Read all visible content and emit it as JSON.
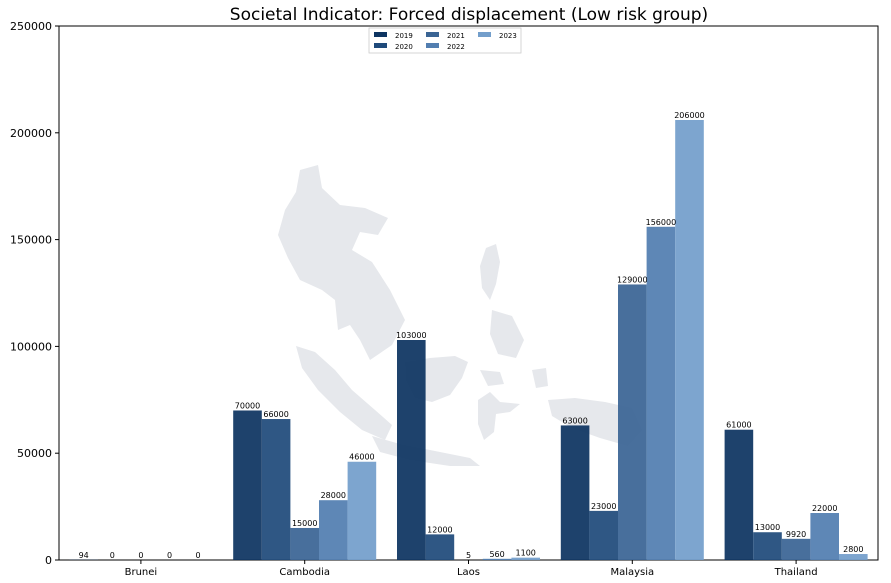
{
  "chart_data": {
    "type": "bar",
    "title": "Societal Indicator: Forced displacement (Low risk group)",
    "xlabel": "",
    "ylabel": "",
    "ylim": [
      0,
      250000
    ],
    "yticks": [
      0,
      50000,
      100000,
      150000,
      200000,
      250000
    ],
    "categories": [
      "Brunei",
      "Cambodia",
      "Laos",
      "Malaysia",
      "Thailand"
    ],
    "legend_position": "top-center",
    "grid": false,
    "background_image": "southeast-asia-map-silhouette",
    "series": [
      {
        "name": "2019",
        "color": "#0d3461",
        "values": [
          94,
          70000,
          103000,
          63000,
          61000
        ]
      },
      {
        "name": "2020",
        "color": "#1f4a7b",
        "values": [
          0,
          66000,
          12000,
          23000,
          13000
        ]
      },
      {
        "name": "2021",
        "color": "#3a6494",
        "values": [
          0,
          15000,
          5,
          129000,
          9920
        ]
      },
      {
        "name": "2022",
        "color": "#527eb0",
        "values": [
          0,
          28000,
          560,
          156000,
          22000
        ]
      },
      {
        "name": "2023",
        "color": "#739ecb",
        "values": [
          0,
          46000,
          1100,
          206000,
          2800
        ]
      }
    ]
  }
}
